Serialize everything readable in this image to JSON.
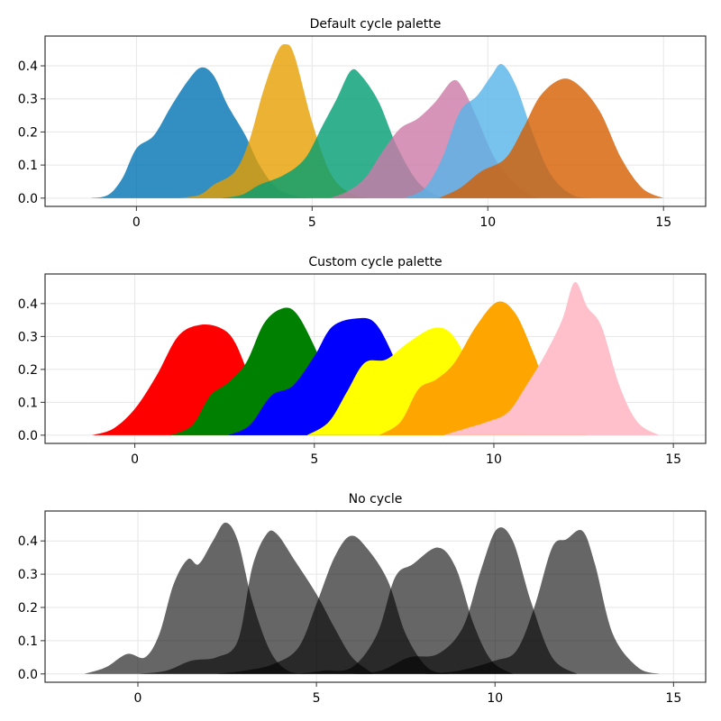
{
  "chart_data": [
    {
      "type": "area",
      "title": "Default cycle palette",
      "xlim": [
        -2.6,
        16.2
      ],
      "ylim": [
        -0.025,
        0.49
      ],
      "xticks": [
        0,
        5,
        10,
        15
      ],
      "yticks": [
        0.0,
        0.1,
        0.2,
        0.3,
        0.4
      ],
      "grid": true,
      "series": [
        {
          "color": "#0072b2",
          "opacity": 0.8,
          "points": [
            [
              -1.3,
              0
            ],
            [
              -0.8,
              0.01
            ],
            [
              -0.4,
              0.06
            ],
            [
              0,
              0.15
            ],
            [
              0.5,
              0.19
            ],
            [
              1,
              0.28
            ],
            [
              1.5,
              0.36
            ],
            [
              1.85,
              0.395
            ],
            [
              2.2,
              0.37
            ],
            [
              2.6,
              0.28
            ],
            [
              3.1,
              0.19
            ],
            [
              3.5,
              0.1
            ],
            [
              4,
              0.03
            ],
            [
              4.6,
              0.005
            ],
            [
              5,
              0
            ]
          ]
        },
        {
          "color": "#e69f00",
          "opacity": 0.8,
          "points": [
            [
              1.2,
              0
            ],
            [
              1.8,
              0.01
            ],
            [
              2.2,
              0.04
            ],
            [
              2.8,
              0.08
            ],
            [
              3.2,
              0.17
            ],
            [
              3.6,
              0.32
            ],
            [
              4,
              0.44
            ],
            [
              4.25,
              0.465
            ],
            [
              4.5,
              0.43
            ],
            [
              5,
              0.23
            ],
            [
              5.5,
              0.08
            ],
            [
              6,
              0.02
            ],
            [
              6.6,
              0
            ]
          ]
        },
        {
          "color": "#009e73",
          "opacity": 0.8,
          "points": [
            [
              2.4,
              0
            ],
            [
              3,
              0.01
            ],
            [
              3.5,
              0.04
            ],
            [
              4.2,
              0.07
            ],
            [
              4.8,
              0.12
            ],
            [
              5.3,
              0.22
            ],
            [
              5.7,
              0.3
            ],
            [
              6.1,
              0.385
            ],
            [
              6.4,
              0.37
            ],
            [
              6.9,
              0.29
            ],
            [
              7.4,
              0.16
            ],
            [
              8,
              0.05
            ],
            [
              8.6,
              0.005
            ],
            [
              9,
              0
            ]
          ]
        },
        {
          "color": "#cc79a7",
          "opacity": 0.8,
          "points": [
            [
              5.5,
              0
            ],
            [
              6,
              0.02
            ],
            [
              6.5,
              0.06
            ],
            [
              7,
              0.14
            ],
            [
              7.5,
              0.21
            ],
            [
              8,
              0.24
            ],
            [
              8.5,
              0.29
            ],
            [
              9,
              0.355
            ],
            [
              9.3,
              0.33
            ],
            [
              9.7,
              0.24
            ],
            [
              10.2,
              0.12
            ],
            [
              10.8,
              0.04
            ],
            [
              11.4,
              0
            ]
          ]
        },
        {
          "color": "#56b4e9",
          "opacity": 0.8,
          "points": [
            [
              7.6,
              0
            ],
            [
              8.2,
              0.03
            ],
            [
              8.7,
              0.12
            ],
            [
              9.2,
              0.26
            ],
            [
              9.7,
              0.31
            ],
            [
              10.1,
              0.37
            ],
            [
              10.4,
              0.405
            ],
            [
              10.8,
              0.34
            ],
            [
              11.3,
              0.19
            ],
            [
              11.8,
              0.07
            ],
            [
              12.4,
              0.01
            ],
            [
              13,
              0
            ]
          ]
        },
        {
          "color": "#d55e00",
          "opacity": 0.8,
          "points": [
            [
              8.6,
              0
            ],
            [
              9.2,
              0.03
            ],
            [
              9.8,
              0.08
            ],
            [
              10.5,
              0.12
            ],
            [
              11,
              0.21
            ],
            [
              11.5,
              0.31
            ],
            [
              12.1,
              0.36
            ],
            [
              12.6,
              0.34
            ],
            [
              13.2,
              0.26
            ],
            [
              13.8,
              0.12
            ],
            [
              14.4,
              0.03
            ],
            [
              15,
              0
            ]
          ]
        }
      ]
    },
    {
      "type": "area",
      "title": "Custom cycle palette",
      "xlim": [
        -2.5,
        15.9
      ],
      "ylim": [
        -0.025,
        0.49
      ],
      "xticks": [
        0,
        5,
        10,
        15
      ],
      "yticks": [
        0.0,
        0.1,
        0.2,
        0.3,
        0.4
      ],
      "grid": true,
      "series": [
        {
          "color": "#ff0000",
          "opacity": 1,
          "points": [
            [
              -1.2,
              0
            ],
            [
              -0.6,
              0.02
            ],
            [
              0,
              0.08
            ],
            [
              0.6,
              0.18
            ],
            [
              1.2,
              0.3
            ],
            [
              1.8,
              0.335
            ],
            [
              2.4,
              0.325
            ],
            [
              2.8,
              0.28
            ],
            [
              3.3,
              0.15
            ],
            [
              3.8,
              0.05
            ],
            [
              4.4,
              0.005
            ],
            [
              4.8,
              0
            ]
          ]
        },
        {
          "color": "#008000",
          "opacity": 1,
          "points": [
            [
              1,
              0
            ],
            [
              1.6,
              0.03
            ],
            [
              2.1,
              0.12
            ],
            [
              2.6,
              0.16
            ],
            [
              3.1,
              0.22
            ],
            [
              3.6,
              0.34
            ],
            [
              4.1,
              0.385
            ],
            [
              4.5,
              0.37
            ],
            [
              5,
              0.27
            ],
            [
              5.5,
              0.14
            ],
            [
              6,
              0.04
            ],
            [
              6.6,
              0
            ]
          ]
        },
        {
          "color": "#0000ff",
          "opacity": 1,
          "points": [
            [
              2.6,
              0
            ],
            [
              3.2,
              0.03
            ],
            [
              3.8,
              0.12
            ],
            [
              4.4,
              0.15
            ],
            [
              5,
              0.24
            ],
            [
              5.5,
              0.33
            ],
            [
              6.2,
              0.355
            ],
            [
              6.7,
              0.34
            ],
            [
              7.2,
              0.24
            ],
            [
              7.7,
              0.1
            ],
            [
              8.2,
              0.02
            ],
            [
              8.7,
              0
            ]
          ]
        },
        {
          "color": "#ffff00",
          "opacity": 1,
          "points": [
            [
              4.8,
              0
            ],
            [
              5.4,
              0.04
            ],
            [
              5.9,
              0.13
            ],
            [
              6.4,
              0.22
            ],
            [
              7,
              0.23
            ],
            [
              7.6,
              0.28
            ],
            [
              8.3,
              0.325
            ],
            [
              8.8,
              0.31
            ],
            [
              9.3,
              0.22
            ],
            [
              9.8,
              0.1
            ],
            [
              10.3,
              0.02
            ],
            [
              10.8,
              0
            ]
          ]
        },
        {
          "color": "#ffa500",
          "opacity": 1,
          "points": [
            [
              6.8,
              0
            ],
            [
              7.4,
              0.04
            ],
            [
              7.9,
              0.14
            ],
            [
              8.4,
              0.17
            ],
            [
              8.9,
              0.22
            ],
            [
              9.5,
              0.33
            ],
            [
              10.1,
              0.405
            ],
            [
              10.6,
              0.37
            ],
            [
              11.1,
              0.25
            ],
            [
              11.6,
              0.11
            ],
            [
              12.1,
              0.02
            ],
            [
              12.6,
              0
            ]
          ]
        },
        {
          "color": "#ffc0cb",
          "opacity": 1,
          "points": [
            [
              8.6,
              0
            ],
            [
              9.2,
              0.02
            ],
            [
              9.8,
              0.04
            ],
            [
              10.4,
              0.07
            ],
            [
              10.9,
              0.15
            ],
            [
              11.4,
              0.24
            ],
            [
              11.9,
              0.35
            ],
            [
              12.25,
              0.465
            ],
            [
              12.6,
              0.39
            ],
            [
              13,
              0.33
            ],
            [
              13.5,
              0.15
            ],
            [
              14,
              0.04
            ],
            [
              14.6,
              0
            ]
          ]
        }
      ]
    },
    {
      "type": "area",
      "title": "No cycle",
      "xlim": [
        -2.6,
        15.9
      ],
      "ylim": [
        -0.025,
        0.49
      ],
      "xticks": [
        0,
        5,
        10,
        15
      ],
      "yticks": [
        0.0,
        0.1,
        0.2,
        0.3,
        0.4
      ],
      "grid": true,
      "series": [
        {
          "color": "#000000",
          "opacity": 0.6,
          "points": [
            [
              -1.5,
              0
            ],
            [
              -0.9,
              0.02
            ],
            [
              -0.3,
              0.06
            ],
            [
              0.2,
              0.05
            ],
            [
              0.6,
              0.12
            ],
            [
              1,
              0.27
            ],
            [
              1.4,
              0.345
            ],
            [
              1.7,
              0.33
            ],
            [
              2.1,
              0.4
            ],
            [
              2.45,
              0.455
            ],
            [
              2.8,
              0.4
            ],
            [
              3.2,
              0.22
            ],
            [
              3.7,
              0.07
            ],
            [
              4.2,
              0.01
            ],
            [
              4.8,
              0
            ]
          ]
        },
        {
          "color": "#000000",
          "opacity": 0.6,
          "points": [
            [
              0,
              0
            ],
            [
              0.8,
              0.01
            ],
            [
              1.5,
              0.04
            ],
            [
              2.2,
              0.05
            ],
            [
              2.8,
              0.1
            ],
            [
              3.2,
              0.32
            ],
            [
              3.6,
              0.42
            ],
            [
              3.9,
              0.42
            ],
            [
              4.4,
              0.34
            ],
            [
              5,
              0.24
            ],
            [
              5.5,
              0.14
            ],
            [
              6,
              0.05
            ],
            [
              6.6,
              0
            ]
          ]
        },
        {
          "color": "#000000",
          "opacity": 0.6,
          "points": [
            [
              2.2,
              0
            ],
            [
              3,
              0.01
            ],
            [
              3.8,
              0.03
            ],
            [
              4.5,
              0.08
            ],
            [
              5,
              0.21
            ],
            [
              5.5,
              0.35
            ],
            [
              5.95,
              0.415
            ],
            [
              6.4,
              0.38
            ],
            [
              7,
              0.28
            ],
            [
              7.5,
              0.12
            ],
            [
              8.1,
              0.02
            ],
            [
              8.7,
              0
            ]
          ]
        },
        {
          "color": "#000000",
          "opacity": 0.6,
          "points": [
            [
              4.5,
              0
            ],
            [
              5.2,
              0.01
            ],
            [
              6,
              0.02
            ],
            [
              6.7,
              0.12
            ],
            [
              7.2,
              0.29
            ],
            [
              7.7,
              0.33
            ],
            [
              8.4,
              0.38
            ],
            [
              8.9,
              0.32
            ],
            [
              9.4,
              0.15
            ],
            [
              9.9,
              0.04
            ],
            [
              10.5,
              0
            ]
          ]
        },
        {
          "color": "#000000",
          "opacity": 0.6,
          "points": [
            [
              6,
              0
            ],
            [
              6.8,
              0.01
            ],
            [
              7.6,
              0.05
            ],
            [
              8.4,
              0.06
            ],
            [
              9.1,
              0.14
            ],
            [
              9.6,
              0.31
            ],
            [
              10.05,
              0.435
            ],
            [
              10.5,
              0.4
            ],
            [
              11,
              0.22
            ],
            [
              11.6,
              0.05
            ],
            [
              12.3,
              0
            ]
          ]
        },
        {
          "color": "#000000",
          "opacity": 0.6,
          "points": [
            [
              8,
              0
            ],
            [
              9,
              0.01
            ],
            [
              10,
              0.04
            ],
            [
              10.6,
              0.07
            ],
            [
              11.1,
              0.2
            ],
            [
              11.6,
              0.38
            ],
            [
              12,
              0.405
            ],
            [
              12.45,
              0.43
            ],
            [
              12.8,
              0.33
            ],
            [
              13.3,
              0.12
            ],
            [
              14,
              0.02
            ],
            [
              14.6,
              0
            ]
          ]
        }
      ]
    }
  ]
}
